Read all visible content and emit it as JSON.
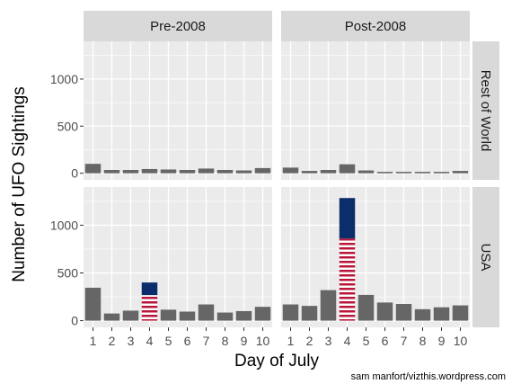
{
  "chart_data": {
    "type": "bar",
    "xlabel": "Day of July",
    "ylabel": "Number of UFO Sightings",
    "credit": "sam manfort/vizthis.wordpress.com",
    "facet_columns": [
      "Pre-2008",
      "Post-2008"
    ],
    "facet_rows": [
      "Rest of World",
      "USA"
    ],
    "categories": [
      "1",
      "2",
      "3",
      "4",
      "5",
      "6",
      "7",
      "8",
      "9",
      "10"
    ],
    "y_ticks": [
      0,
      500,
      1000
    ],
    "ylim": [
      -70,
      1400
    ],
    "grid": true,
    "highlight_category": "4",
    "flag_style": "stars-and-stripes fill on the July 4 USA bars",
    "colors": {
      "bar": "#666666",
      "panel_bg": "#ebebeb",
      "grid": "#ffffff",
      "strip_bg": "#d9d9d9",
      "flag_blue": "#0b2e6b",
      "flag_red": "#b8163a",
      "flag_white": "#ffffff"
    },
    "series": [
      {
        "col": "Pre-2008",
        "row": "Rest of World",
        "values": [
          100,
          35,
          35,
          45,
          40,
          35,
          50,
          35,
          30,
          55
        ]
      },
      {
        "col": "Post-2008",
        "row": "Rest of World",
        "values": [
          60,
          25,
          35,
          95,
          30,
          15,
          15,
          15,
          15,
          25
        ]
      },
      {
        "col": "Pre-2008",
        "row": "USA",
        "values": [
          345,
          75,
          105,
          400,
          115,
          95,
          170,
          85,
          100,
          145
        ]
      },
      {
        "col": "Post-2008",
        "row": "USA",
        "values": [
          170,
          155,
          320,
          1285,
          270,
          190,
          175,
          120,
          140,
          160
        ]
      }
    ]
  }
}
